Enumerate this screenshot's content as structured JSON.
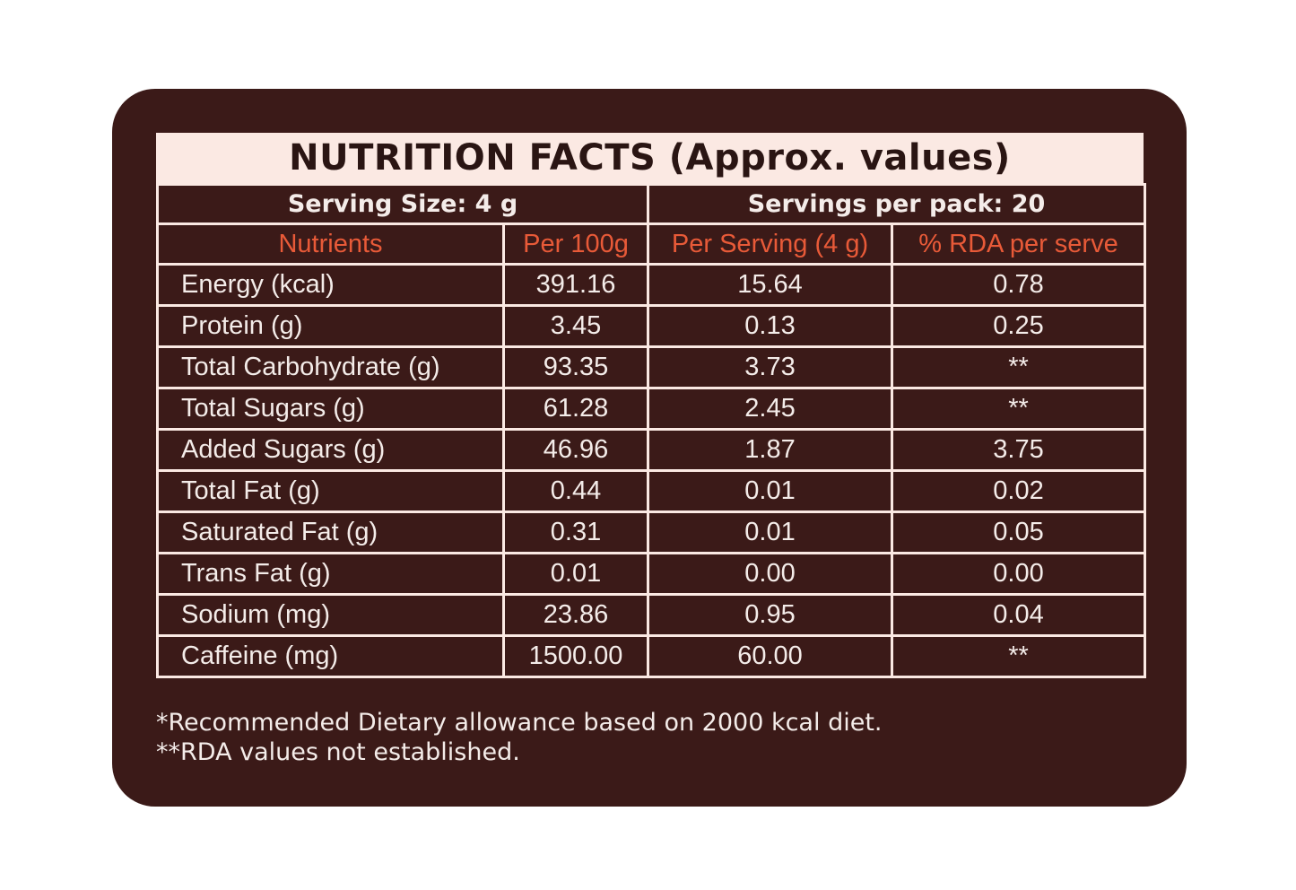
{
  "title": "NUTRITION FACTS (Approx. values)",
  "serving_size": "Serving Size: 4 g",
  "servings_per_pack": "Servings per pack: 20",
  "headers": [
    "Nutrients",
    "Per 100g",
    "Per Serving (4 g)",
    "% RDA per serve"
  ],
  "rows": [
    [
      "Energy (kcal)",
      "391.16",
      "15.64",
      "0.78"
    ],
    [
      "Protein (g)",
      "3.45",
      "0.13",
      "0.25"
    ],
    [
      "Total Carbohydrate (g)",
      "93.35",
      "3.73",
      "**"
    ],
    [
      "Total Sugars (g)",
      "61.28",
      "2.45",
      "**"
    ],
    [
      "Added Sugars (g)",
      "46.96",
      "1.87",
      "3.75"
    ],
    [
      "Total Fat (g)",
      "0.44",
      "0.01",
      "0.02"
    ],
    [
      "Saturated Fat (g)",
      "0.31",
      "0.01",
      "0.05"
    ],
    [
      "Trans Fat (g)",
      "0.01",
      "0.00",
      "0.00"
    ],
    [
      "Sodium (mg)",
      "23.86",
      "0.95",
      "0.04"
    ],
    [
      "Caffeine (mg)",
      "1500.00",
      "60.00",
      "**"
    ]
  ],
  "footnotes": [
    "*Recommended Dietary allowance based on 2000 kcal diet.",
    "**RDA values not established."
  ],
  "colors": {
    "card_background": "#3b1a18",
    "title_band": "#fbe9e3",
    "header_text": "#e85a38",
    "body_text": "#f4ece9"
  }
}
